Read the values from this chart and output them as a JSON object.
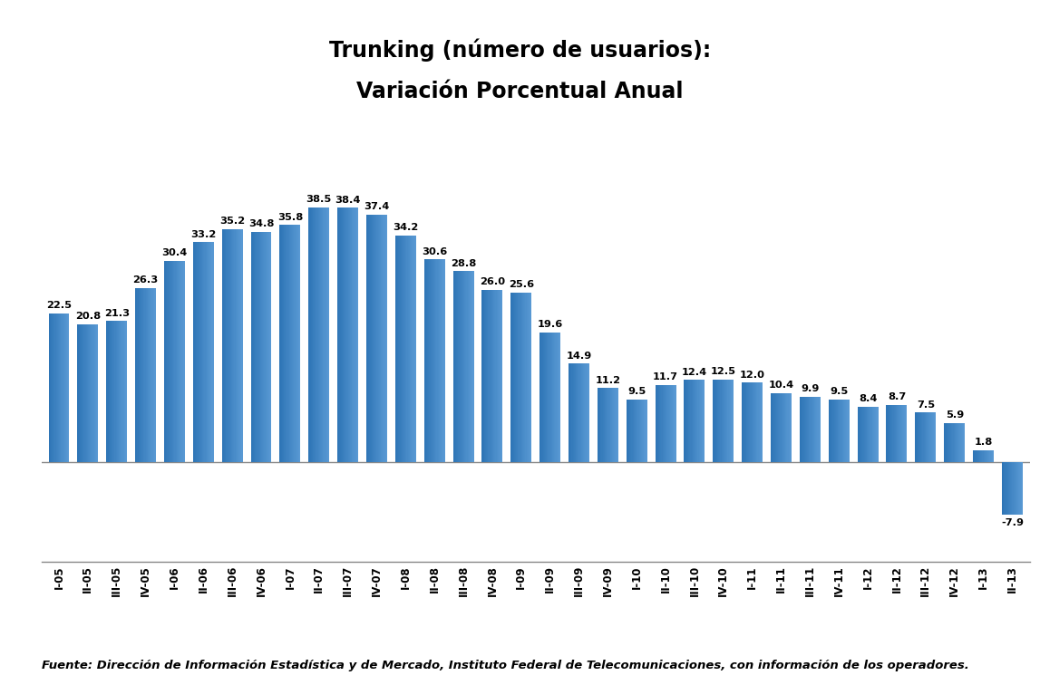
{
  "title_line1": "Trunking (número de usuarios):",
  "title_line2": "Variación Porcentual Anual",
  "categories": [
    "I-05",
    "II-05",
    "III-05",
    "IV-05",
    "I-06",
    "II-06",
    "III-06",
    "IV-06",
    "I-07",
    "II-07",
    "III-07",
    "IV-07",
    "I-08",
    "II-08",
    "III-08",
    "IV-08",
    "I-09",
    "II-09",
    "III-09",
    "IV-09",
    "I-10",
    "II-10",
    "III-10",
    "IV-10",
    "I-11",
    "II-11",
    "III-11",
    "IV-11",
    "I-12",
    "II-12",
    "III-12",
    "IV-12",
    "I-13",
    "II-13"
  ],
  "values": [
    22.5,
    20.8,
    21.3,
    26.3,
    30.4,
    33.2,
    35.2,
    34.8,
    35.8,
    38.5,
    38.4,
    37.4,
    34.2,
    30.6,
    28.8,
    26.0,
    25.6,
    19.6,
    14.9,
    11.2,
    9.5,
    11.7,
    12.4,
    12.5,
    12.0,
    10.4,
    9.9,
    9.5,
    8.4,
    8.7,
    7.5,
    5.9,
    1.8,
    -7.9
  ],
  "bar_color_dark": "#1F5C9A",
  "bar_color_main": "#2E75B6",
  "bar_color_light": "#5B9BD5",
  "title_fontsize": 17,
  "label_fontsize": 8.2,
  "tick_fontsize": 8.5,
  "footer_text": "Fuente: Dirección de Información Estadística y de Mercado, Instituto Federal de Telecomunicaciones, con información de los operadores.",
  "footer_fontsize": 9.5,
  "background_color": "#FFFFFF",
  "ylim_min": -15,
  "ylim_max": 47
}
